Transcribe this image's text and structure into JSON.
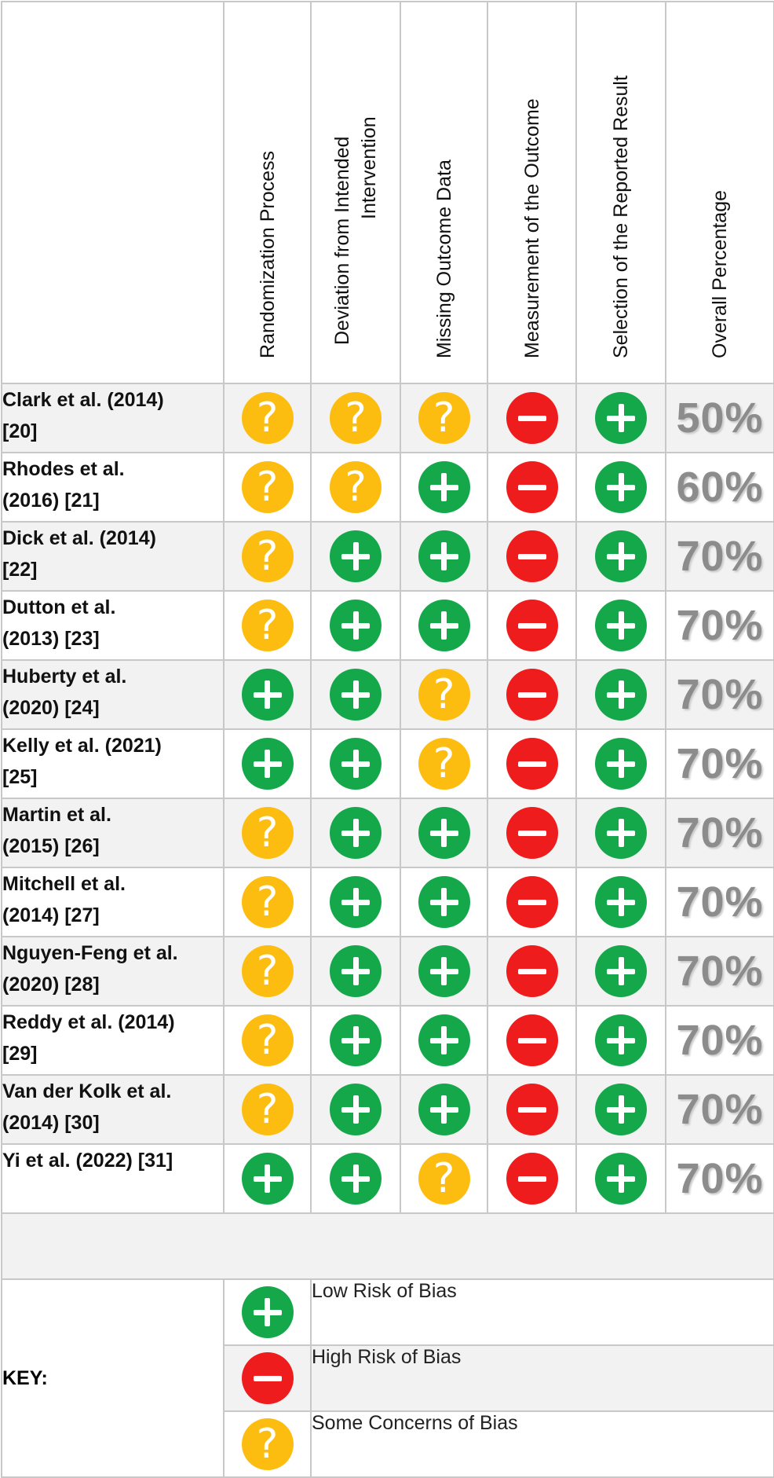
{
  "columns": [
    {
      "lines": [
        "Randomization Process"
      ]
    },
    {
      "lines": [
        "Deviation from Intended",
        "Intervention"
      ]
    },
    {
      "lines": [
        "Missing Outcome Data"
      ]
    },
    {
      "lines": [
        "Measurement of the Outcome"
      ]
    },
    {
      "lines": [
        "Selection of the Reported Result"
      ]
    },
    {
      "lines": [
        "Overall Percentage"
      ]
    }
  ],
  "rows": [
    {
      "line1": "Clark et al. (2014)",
      "line2": "[20]",
      "r": [
        "some",
        "some",
        "some",
        "high",
        "low"
      ],
      "pct": "50%"
    },
    {
      "line1": "Rhodes et al.",
      "line2": "(2016) [21]",
      "r": [
        "some",
        "some",
        "low",
        "high",
        "low"
      ],
      "pct": "60%"
    },
    {
      "line1": "Dick et al. (2014)",
      "line2": "[22]",
      "r": [
        "some",
        "low",
        "low",
        "high",
        "low"
      ],
      "pct": "70%"
    },
    {
      "line1": "Dutton et al.",
      "line2": "(2013) [23]",
      "r": [
        "some",
        "low",
        "low",
        "high",
        "low"
      ],
      "pct": "70%"
    },
    {
      "line1": "Huberty et al.",
      "line2": "(2020) [24]",
      "r": [
        "low",
        "low",
        "some",
        "high",
        "low"
      ],
      "pct": "70%"
    },
    {
      "line1": "Kelly et al. (2021)",
      "line2": "[25]",
      "r": [
        "low",
        "low",
        "some",
        "high",
        "low"
      ],
      "pct": "70%"
    },
    {
      "line1": "Martin et al.",
      "line2": "(2015) [26]",
      "r": [
        "some",
        "low",
        "low",
        "high",
        "low"
      ],
      "pct": "70%"
    },
    {
      "line1": "Mitchell et al.",
      "line2": "(2014) [27]",
      "r": [
        "some",
        "low",
        "low",
        "high",
        "low"
      ],
      "pct": "70%"
    },
    {
      "line1": "Nguyen-Feng et al.",
      "line2": "(2020) [28]",
      "r": [
        "some",
        "low",
        "low",
        "high",
        "low"
      ],
      "pct": "70%"
    },
    {
      "line1": "Reddy et al. (2014)",
      "line2": "[29]",
      "r": [
        "some",
        "low",
        "low",
        "high",
        "low"
      ],
      "pct": "70%"
    },
    {
      "line1": "Van der Kolk et al.",
      "line2": "(2014) [30]",
      "r": [
        "some",
        "low",
        "low",
        "high",
        "low"
      ],
      "pct": "70%"
    },
    {
      "line1": "Yi et al. (2022) [31]",
      "line2": "",
      "r": [
        "low",
        "low",
        "some",
        "high",
        "low"
      ],
      "pct": "70%"
    }
  ],
  "key": {
    "label": "KEY:",
    "items": [
      {
        "icon": "plus-icon",
        "level": "low",
        "text": "Low Risk of Bias"
      },
      {
        "icon": "minus-icon",
        "level": "high",
        "text": "High Risk of Bias"
      },
      {
        "icon": "question-icon",
        "level": "some",
        "text": "Some Concerns of Bias"
      }
    ]
  },
  "colors": {
    "low": "#14a84a",
    "high": "#ee1c1c",
    "some": "#fdbd10",
    "overall_text": "#8c8c8c"
  }
}
